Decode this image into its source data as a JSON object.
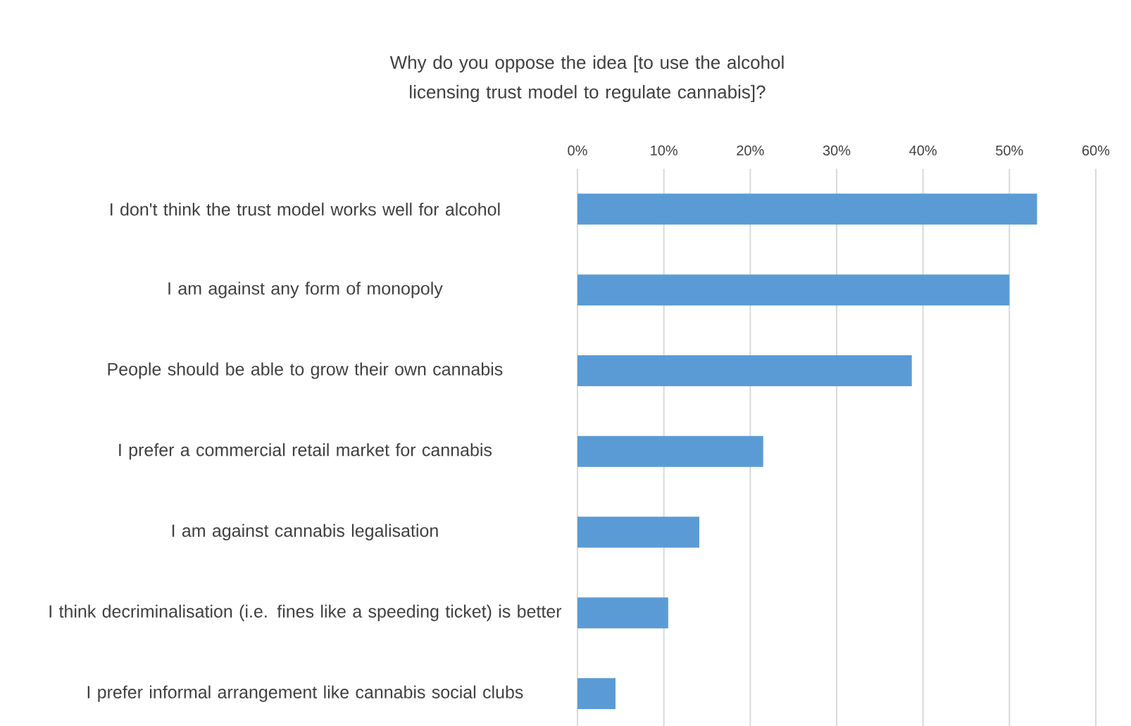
{
  "chart_data": {
    "type": "bar",
    "orientation": "horizontal",
    "title": "Why do you oppose the idea [to use the alcohol licensing trust model to regulate cannabis]?",
    "categories": [
      "I don't think the trust model works well for alcohol",
      "I am against any form of monopoly",
      "People should be able to grow their own cannabis",
      "I prefer a commercial retail market for cannabis",
      "I am against cannabis legalisation",
      "I think decriminalisation (i.e. fines like a speeding ticket) is better",
      "I prefer informal arrangement like cannabis social clubs"
    ],
    "values": [
      53.2,
      50,
      38.7,
      21.5,
      14.1,
      10.5,
      4.4
    ],
    "color": "#5b9bd5",
    "xlim": [
      0,
      60
    ],
    "xticks": [
      {
        "value": 0,
        "label": "0%"
      },
      {
        "value": 10,
        "label": "10%"
      },
      {
        "value": 20,
        "label": "20%"
      },
      {
        "value": 30,
        "label": "30%"
      },
      {
        "value": 40,
        "label": "40%"
      },
      {
        "value": 50,
        "label": "50%"
      },
      {
        "value": 60,
        "label": "60%"
      }
    ],
    "grid": "x"
  }
}
